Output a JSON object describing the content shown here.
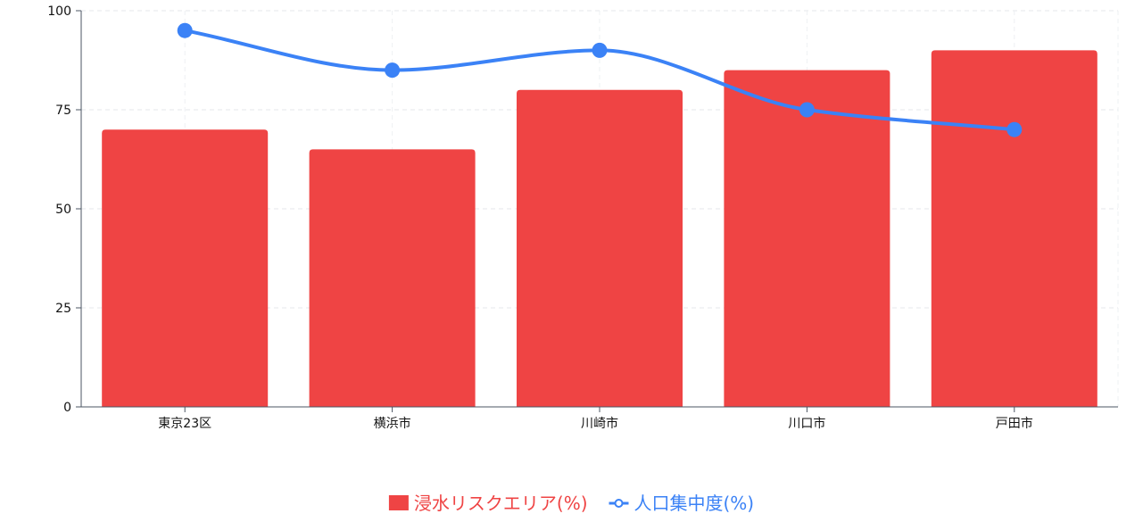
{
  "chart_data": {
    "type": "bar",
    "categories": [
      "東京23区",
      "横浜市",
      "川崎市",
      "川口市",
      "戸田市"
    ],
    "series": [
      {
        "name": "浸水リスクエリア(%)",
        "type": "bar",
        "color": "#ef4444",
        "values": [
          70,
          65,
          80,
          85,
          90
        ]
      },
      {
        "name": "人口集中度(%)",
        "type": "line",
        "smooth": true,
        "color": "#3b82f6",
        "values": [
          95,
          85,
          90,
          75,
          70
        ]
      }
    ],
    "title": "",
    "xlabel": "",
    "ylabel": "",
    "ylim": [
      0,
      100
    ],
    "yticks": [
      0,
      25,
      50,
      75,
      100
    ],
    "grid": true,
    "legend_position": "bottom"
  }
}
